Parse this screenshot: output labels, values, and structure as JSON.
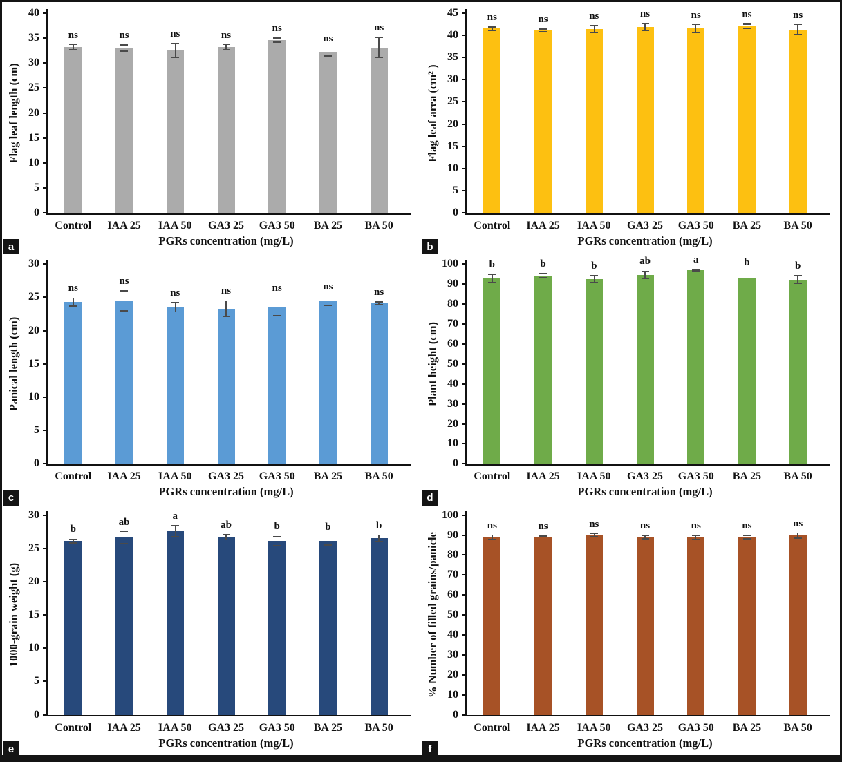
{
  "figure": {
    "background_color": "#ffffff",
    "frame_color": "#141414",
    "error_bar_color": "#4a4a4a",
    "shared_xlabel": "PGRs concentration (mg/L)",
    "categories": [
      "Control",
      "IAA 25",
      "IAA 50",
      "GA3 25",
      "GA3 50",
      "BA 25",
      "BA 50"
    ],
    "panel_letters": [
      "a",
      "b",
      "c",
      "d",
      "e",
      "f"
    ]
  },
  "chart_data": [
    {
      "panel": "a",
      "type": "bar",
      "ylabel": "Flag leaf length (cm)",
      "xlabel": "PGRs concentration (mg/L)",
      "categories": [
        "Control",
        "IAA 25",
        "IAA 50",
        "GA3 25",
        "GA3 50",
        "BA 25",
        "BA 50"
      ],
      "values": [
        33.2,
        33.0,
        32.5,
        33.2,
        34.6,
        32.2,
        33.1
      ],
      "errors": [
        0.5,
        0.6,
        1.4,
        0.5,
        0.4,
        0.8,
        2.0
      ],
      "sig_labels": [
        "ns",
        "ns",
        "ns",
        "ns",
        "ns",
        "ns",
        "ns"
      ],
      "ylim": [
        0,
        40
      ],
      "ytick_step": 5,
      "bar_color": "#ABABAB",
      "grid": false,
      "legend": false
    },
    {
      "panel": "b",
      "type": "bar",
      "ylabel": "Flag leaf area (cm² )",
      "xlabel": "PGRs concentration (mg/L)",
      "categories": [
        "Control",
        "IAA 25",
        "IAA 50",
        "GA3 25",
        "GA3 50",
        "BA 25",
        "BA 50"
      ],
      "values": [
        41.5,
        41.1,
        41.4,
        41.9,
        41.5,
        42.0,
        41.3
      ],
      "errors": [
        0.4,
        0.3,
        0.8,
        0.8,
        0.9,
        0.5,
        1.1
      ],
      "sig_labels": [
        "ns",
        "ns",
        "ns",
        "ns",
        "ns",
        "ns",
        "ns"
      ],
      "ylim": [
        0,
        45
      ],
      "ytick_step": 5,
      "bar_color": "#FDC011",
      "grid": false,
      "legend": false
    },
    {
      "panel": "c",
      "type": "bar",
      "ylabel": "Panical length (cm)",
      "xlabel": "PGRs concentration (mg/L)",
      "categories": [
        "Control",
        "IAA 25",
        "IAA 50",
        "GA3 25",
        "GA3 50",
        "BA 25",
        "BA 50"
      ],
      "values": [
        24.3,
        24.5,
        23.5,
        23.3,
        23.6,
        24.5,
        24.1
      ],
      "errors": [
        0.6,
        1.5,
        0.7,
        1.2,
        1.3,
        0.7,
        0.2
      ],
      "sig_labels": [
        "ns",
        "ns",
        "ns",
        "ns",
        "ns",
        "ns",
        "ns"
      ],
      "ylim": [
        0,
        30
      ],
      "ytick_step": 5,
      "bar_color": "#5B9BD5",
      "grid": false,
      "legend": false
    },
    {
      "panel": "d",
      "type": "bar",
      "ylabel": "Plant height (cm)",
      "xlabel": "PGRs concentration (mg/L)",
      "categories": [
        "Control",
        "IAA 25",
        "IAA 50",
        "GA3 25",
        "GA3 50",
        "BA 25",
        "BA 50"
      ],
      "values": [
        93.0,
        94.2,
        92.5,
        94.7,
        97.0,
        92.8,
        92.3
      ],
      "errors": [
        2.0,
        1.0,
        1.7,
        1.8,
        0.4,
        3.3,
        1.9
      ],
      "sig_labels": [
        "b",
        "b",
        "b",
        "ab",
        "a",
        "b",
        "b"
      ],
      "ylim": [
        0,
        100
      ],
      "ytick_step": 10,
      "bar_color": "#6FAB49",
      "grid": false,
      "legend": false
    },
    {
      "panel": "e",
      "type": "bar",
      "ylabel": "1000-grain weight (g)",
      "xlabel": "PGRs concentration (mg/L)",
      "categories": [
        "Control",
        "IAA 25",
        "IAA 50",
        "GA3 25",
        "GA3 50",
        "BA 25",
        "BA 50"
      ],
      "values": [
        26.1,
        26.6,
        27.6,
        26.7,
        26.1,
        26.1,
        26.5
      ],
      "errors": [
        0.3,
        0.9,
        0.8,
        0.4,
        0.7,
        0.6,
        0.5
      ],
      "sig_labels": [
        "b",
        "ab",
        "a",
        "ab",
        "b",
        "b",
        "b"
      ],
      "ylim": [
        0,
        30
      ],
      "ytick_step": 5,
      "bar_color": "#27497B",
      "grid": false,
      "legend": false
    },
    {
      "panel": "f",
      "type": "bar",
      "ylabel": "% Number of filled grains/panicle",
      "xlabel": "PGRs concentration (mg/L)",
      "categories": [
        "Control",
        "IAA 25",
        "IAA 50",
        "GA3 25",
        "GA3 50",
        "BA 25",
        "BA 50"
      ],
      "values": [
        89.0,
        89.2,
        90.0,
        89.0,
        88.8,
        89.0,
        89.7
      ],
      "errors": [
        1.0,
        0.3,
        0.7,
        0.8,
        1.0,
        0.9,
        1.3
      ],
      "sig_labels": [
        "ns",
        "ns",
        "ns",
        "ns",
        "ns",
        "ns",
        "ns"
      ],
      "ylim": [
        0,
        100
      ],
      "ytick_step": 10,
      "bar_color": "#A75226",
      "grid": false,
      "legend": false
    }
  ]
}
